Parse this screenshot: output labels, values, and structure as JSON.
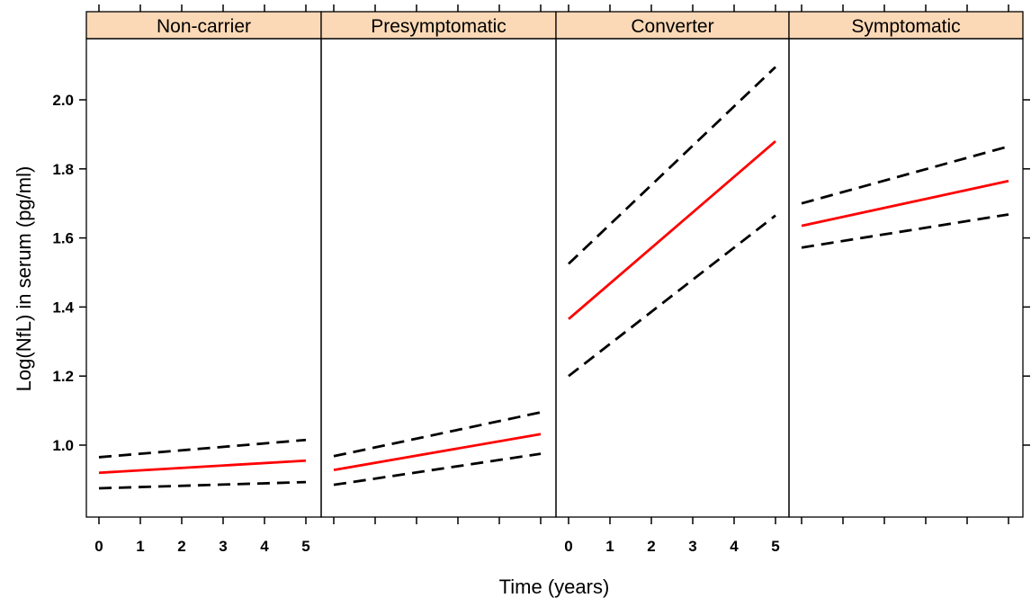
{
  "chart_data": {
    "type": "line",
    "xlabel": "Time (years)",
    "ylabel": "Log(NfL) in serum (pg/ml)",
    "ylim": [
      0.78,
      2.18
    ],
    "xlim": [
      -0.3,
      5.2
    ],
    "y_ticks": [
      1.0,
      1.2,
      1.4,
      1.6,
      1.8,
      2.0
    ],
    "y_tick_labels": [
      "1.0",
      "1.2",
      "1.4",
      "1.6",
      "1.8",
      "2.0"
    ],
    "x_ticks": [
      0,
      1,
      2,
      3,
      4,
      5
    ],
    "x_tick_labels": [
      "0",
      "1",
      "2",
      "3",
      "4",
      "5"
    ],
    "strip_color": "#fcd9b6",
    "fit_color": "#ff0000",
    "ci_color": "#000000",
    "panels": [
      {
        "name": "Non-carrier",
        "fit": [
          0.92,
          0.955
        ],
        "lower": [
          0.875,
          0.893
        ],
        "upper": [
          0.965,
          1.015
        ],
        "x_labels_shown": true
      },
      {
        "name": "Presymptomatic",
        "fit": [
          0.928,
          1.032
        ],
        "lower": [
          0.885,
          0.975
        ],
        "upper": [
          0.968,
          1.095
        ],
        "x_labels_shown": false
      },
      {
        "name": "Converter",
        "fit": [
          1.365,
          1.88
        ],
        "lower": [
          1.2,
          1.665
        ],
        "upper": [
          1.525,
          2.095
        ],
        "x_labels_shown": true
      },
      {
        "name": "Symptomatic",
        "fit": [
          1.635,
          1.765
        ],
        "lower": [
          1.572,
          1.668
        ],
        "upper": [
          1.7,
          1.865
        ],
        "x_labels_shown": false
      }
    ]
  }
}
